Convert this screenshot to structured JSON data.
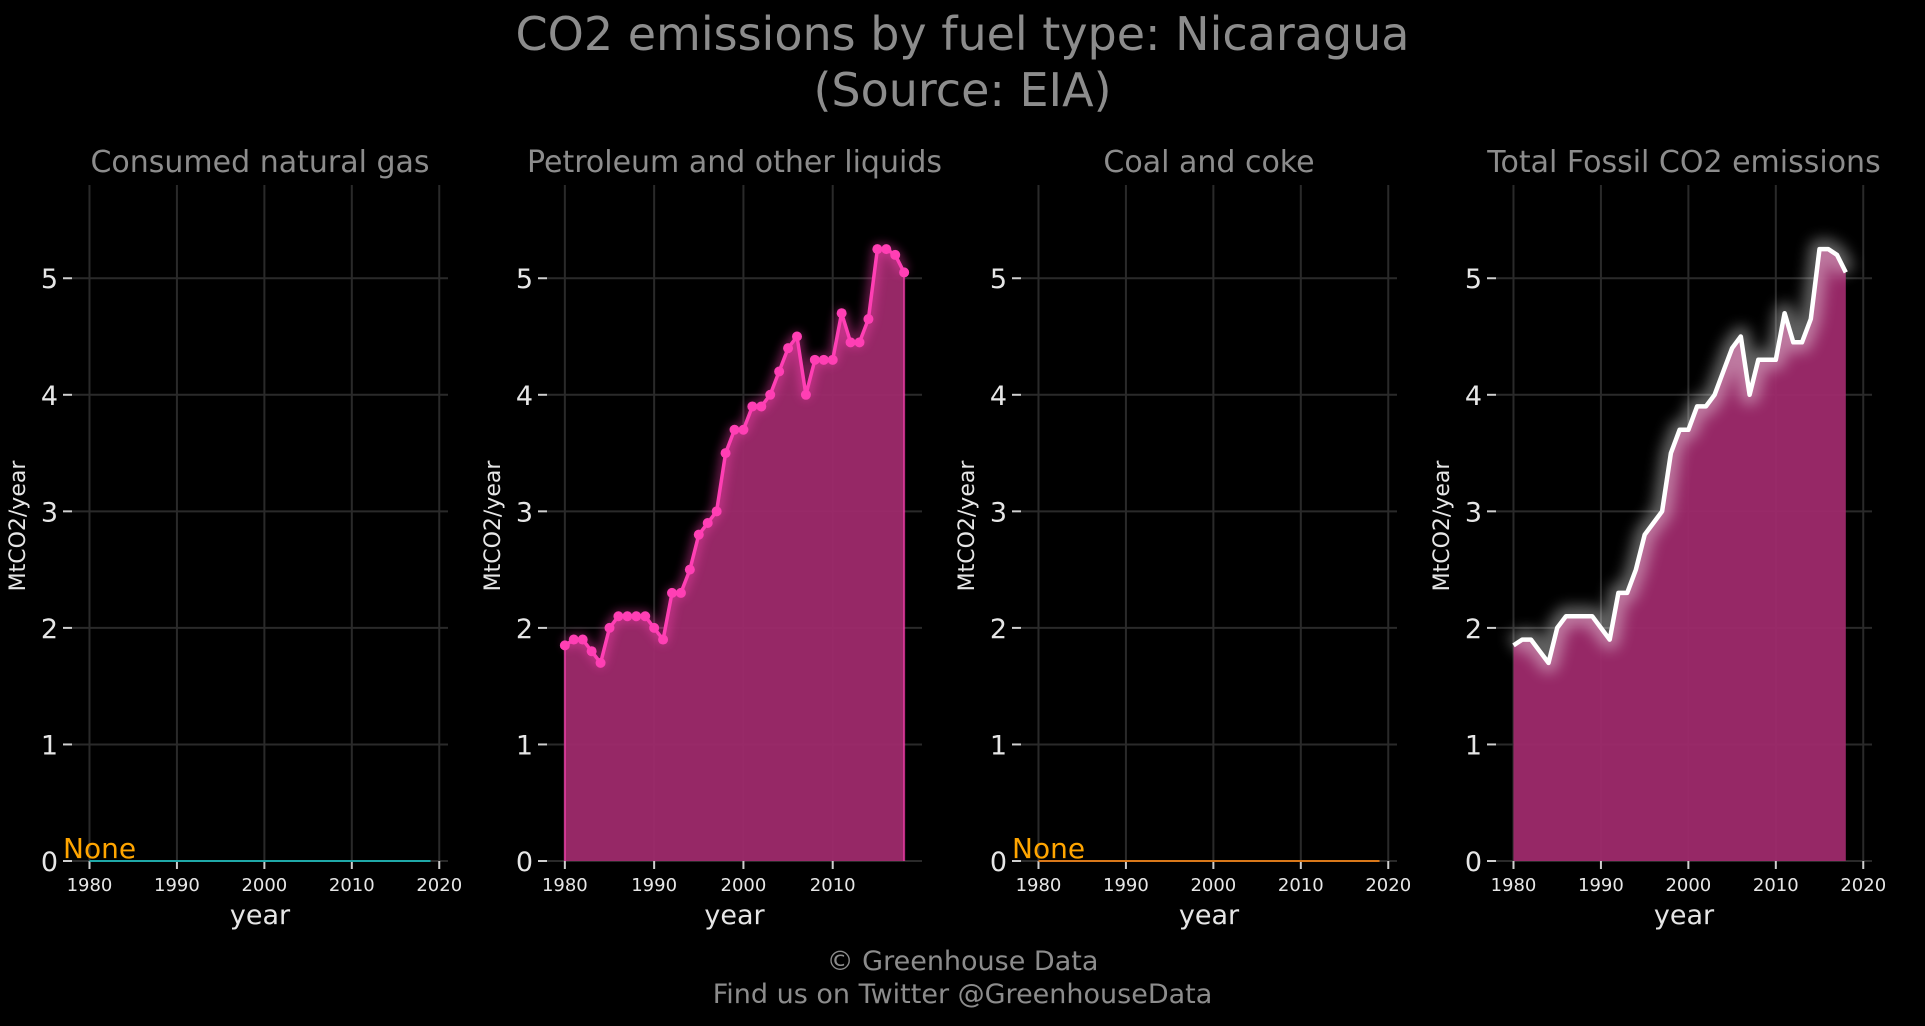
{
  "page": {
    "title_line1": "CO2 emissions by fuel type: Nicaragua",
    "title_line2": "(Source: EIA)",
    "footer_line1": "© Greenhouse Data",
    "footer_line2": "Find us on Twitter @GreenhouseData"
  },
  "chart_data": [
    {
      "type": "line",
      "title": "Consumed natural gas",
      "xlabel": "year",
      "ylabel": "MtCO2/year",
      "xlim": [
        1978,
        2021
      ],
      "ylim": [
        0,
        5.8
      ],
      "xticks": [
        1980,
        1990,
        2000,
        2010,
        2020
      ],
      "yticks": [
        0,
        1,
        2,
        3,
        4,
        5
      ],
      "grid": true,
      "annotation": "None",
      "series": [
        {
          "color": "#1fa8a8",
          "style": "flat",
          "x": [
            1980,
            2019
          ],
          "y": [
            0,
            0
          ]
        }
      ]
    },
    {
      "type": "area",
      "title": "Petroleum and other liquids",
      "xlabel": "year",
      "ylabel": "MtCO2/year",
      "xlim": [
        1978,
        2020
      ],
      "ylim": [
        0,
        5.8
      ],
      "xticks": [
        1980,
        1990,
        2000,
        2010
      ],
      "yticks": [
        0,
        1,
        2,
        3,
        4,
        5
      ],
      "grid": true,
      "series": [
        {
          "color": "#ff3fb4",
          "fill": "#9e2a6c",
          "style": "markers",
          "x": [
            1980,
            1981,
            1982,
            1983,
            1984,
            1985,
            1986,
            1987,
            1988,
            1989,
            1990,
            1991,
            1992,
            1993,
            1994,
            1995,
            1996,
            1997,
            1998,
            1999,
            2000,
            2001,
            2002,
            2003,
            2004,
            2005,
            2006,
            2007,
            2008,
            2009,
            2010,
            2011,
            2012,
            2013,
            2014,
            2015,
            2016,
            2017,
            2018
          ],
          "y": [
            1.85,
            1.9,
            1.9,
            1.8,
            1.7,
            2.0,
            2.1,
            2.1,
            2.1,
            2.1,
            2.0,
            1.9,
            2.3,
            2.3,
            2.5,
            2.8,
            2.9,
            3.0,
            3.5,
            3.7,
            3.7,
            3.9,
            3.9,
            4.0,
            4.2,
            4.4,
            4.5,
            4.0,
            4.3,
            4.3,
            4.3,
            4.7,
            4.45,
            4.45,
            4.65,
            5.25,
            5.25,
            5.2,
            5.05
          ]
        }
      ]
    },
    {
      "type": "line",
      "title": "Coal and coke",
      "xlabel": "year",
      "ylabel": "MtCO2/year",
      "xlim": [
        1978,
        2021
      ],
      "ylim": [
        0,
        5.8
      ],
      "xticks": [
        1980,
        1990,
        2000,
        2010,
        2020
      ],
      "yticks": [
        0,
        1,
        2,
        3,
        4,
        5
      ],
      "grid": true,
      "annotation": "None",
      "series": [
        {
          "color": "#d9781a",
          "style": "flat",
          "x": [
            1980,
            2019
          ],
          "y": [
            0,
            0
          ]
        }
      ]
    },
    {
      "type": "area",
      "title": "Total Fossil CO2 emissions",
      "xlabel": "year",
      "ylabel": "MtCO2/year",
      "xlim": [
        1978,
        2021
      ],
      "ylim": [
        0,
        5.8
      ],
      "xticks": [
        1980,
        1990,
        2000,
        2010,
        2020
      ],
      "yticks": [
        0,
        1,
        2,
        3,
        4,
        5
      ],
      "grid": true,
      "series": [
        {
          "color": "#ffffff",
          "fill": "#9e2a6c",
          "style": "glow",
          "x": [
            1980,
            1981,
            1982,
            1983,
            1984,
            1985,
            1986,
            1987,
            1988,
            1989,
            1990,
            1991,
            1992,
            1993,
            1994,
            1995,
            1996,
            1997,
            1998,
            1999,
            2000,
            2001,
            2002,
            2003,
            2004,
            2005,
            2006,
            2007,
            2008,
            2009,
            2010,
            2011,
            2012,
            2013,
            2014,
            2015,
            2016,
            2017,
            2018
          ],
          "y": [
            1.85,
            1.9,
            1.9,
            1.8,
            1.7,
            2.0,
            2.1,
            2.1,
            2.1,
            2.1,
            2.0,
            1.9,
            2.3,
            2.3,
            2.5,
            2.8,
            2.9,
            3.0,
            3.5,
            3.7,
            3.7,
            3.9,
            3.9,
            4.0,
            4.2,
            4.4,
            4.5,
            4.0,
            4.3,
            4.3,
            4.3,
            4.7,
            4.45,
            4.45,
            4.65,
            5.25,
            5.25,
            5.2,
            5.05
          ]
        }
      ]
    }
  ]
}
